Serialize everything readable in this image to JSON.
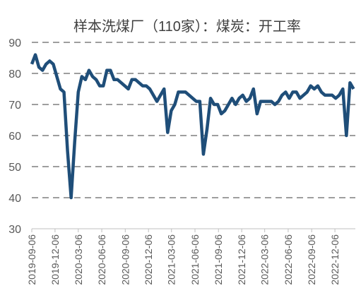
{
  "chart_data": {
    "type": "line",
    "title": "样本洗煤厂（110家）：煤炭：开工率",
    "x": [
      "2019-09-06",
      "2019-09-20",
      "2019-10-04",
      "2019-10-18",
      "2019-11-01",
      "2019-11-15",
      "2019-11-29",
      "2019-12-13",
      "2019-12-27",
      "2020-01-10",
      "2020-01-24",
      "2020-02-07",
      "2020-02-21",
      "2020-03-06",
      "2020-03-20",
      "2020-04-03",
      "2020-04-17",
      "2020-05-01",
      "2020-05-15",
      "2020-05-29",
      "2020-06-12",
      "2020-06-26",
      "2020-07-10",
      "2020-07-24",
      "2020-08-07",
      "2020-08-21",
      "2020-09-04",
      "2020-09-18",
      "2020-10-02",
      "2020-10-16",
      "2020-10-30",
      "2020-11-13",
      "2020-11-27",
      "2020-12-11",
      "2020-12-25",
      "2021-01-08",
      "2021-01-22",
      "2021-02-05",
      "2021-02-19",
      "2021-03-05",
      "2021-03-19",
      "2021-04-02",
      "2021-04-16",
      "2021-04-30",
      "2021-05-14",
      "2021-05-28",
      "2021-06-11",
      "2021-06-25",
      "2021-07-09",
      "2021-07-23",
      "2021-08-06",
      "2021-08-20",
      "2021-09-03",
      "2021-09-17",
      "2021-10-01",
      "2021-10-15",
      "2021-10-29",
      "2021-11-12",
      "2021-11-26",
      "2021-12-10",
      "2021-12-24",
      "2022-01-07",
      "2022-01-21",
      "2022-02-04",
      "2022-02-18",
      "2022-03-04",
      "2022-03-18",
      "2022-04-01",
      "2022-04-15",
      "2022-04-29",
      "2022-05-13",
      "2022-05-27",
      "2022-06-10",
      "2022-06-24",
      "2022-07-08",
      "2022-07-22",
      "2022-08-05",
      "2022-08-19",
      "2022-09-02",
      "2022-09-16",
      "2022-09-30",
      "2022-10-14",
      "2022-10-28",
      "2022-11-11",
      "2022-11-25",
      "2022-12-09",
      "2022-12-23",
      "2023-01-06",
      "2023-01-20",
      "2023-02-03",
      "2023-02-17"
    ],
    "series": [
      {
        "color": "#1f4e79",
        "values": [
          83,
          86,
          82,
          81,
          83,
          84,
          83,
          79,
          75,
          74,
          55,
          40,
          58,
          74,
          79,
          78,
          81,
          79,
          78,
          76,
          76,
          81,
          81,
          78,
          78,
          77,
          76,
          75,
          78,
          78,
          77,
          76,
          76,
          75,
          73,
          71,
          73,
          75,
          61,
          68,
          70,
          74,
          74,
          74,
          73,
          72,
          71,
          71,
          54,
          62,
          72,
          70,
          70,
          67,
          68,
          70,
          72,
          70,
          72,
          73,
          71,
          72,
          75,
          67,
          71,
          71,
          71,
          71,
          70,
          71,
          73,
          74,
          72,
          74,
          74,
          72,
          73,
          74,
          76,
          75,
          76,
          74,
          73,
          73,
          73,
          72,
          73,
          75,
          60,
          77,
          75
        ]
      }
    ],
    "xlim": [
      "2019-09-06",
      "2023-02-24"
    ],
    "xticks": [
      "2019-09-06",
      "2019-12-06",
      "2020-03-06",
      "2020-06-06",
      "2020-09-06",
      "2020-12-06",
      "2021-03-06",
      "2021-06-06",
      "2021-09-06",
      "2021-12-06",
      "2022-03-06",
      "2022-06-06",
      "2022-09-06",
      "2022-12-06"
    ],
    "ylim": [
      30,
      90
    ],
    "yticks": [
      30,
      40,
      50,
      60,
      70,
      80,
      90
    ],
    "grid": true
  }
}
